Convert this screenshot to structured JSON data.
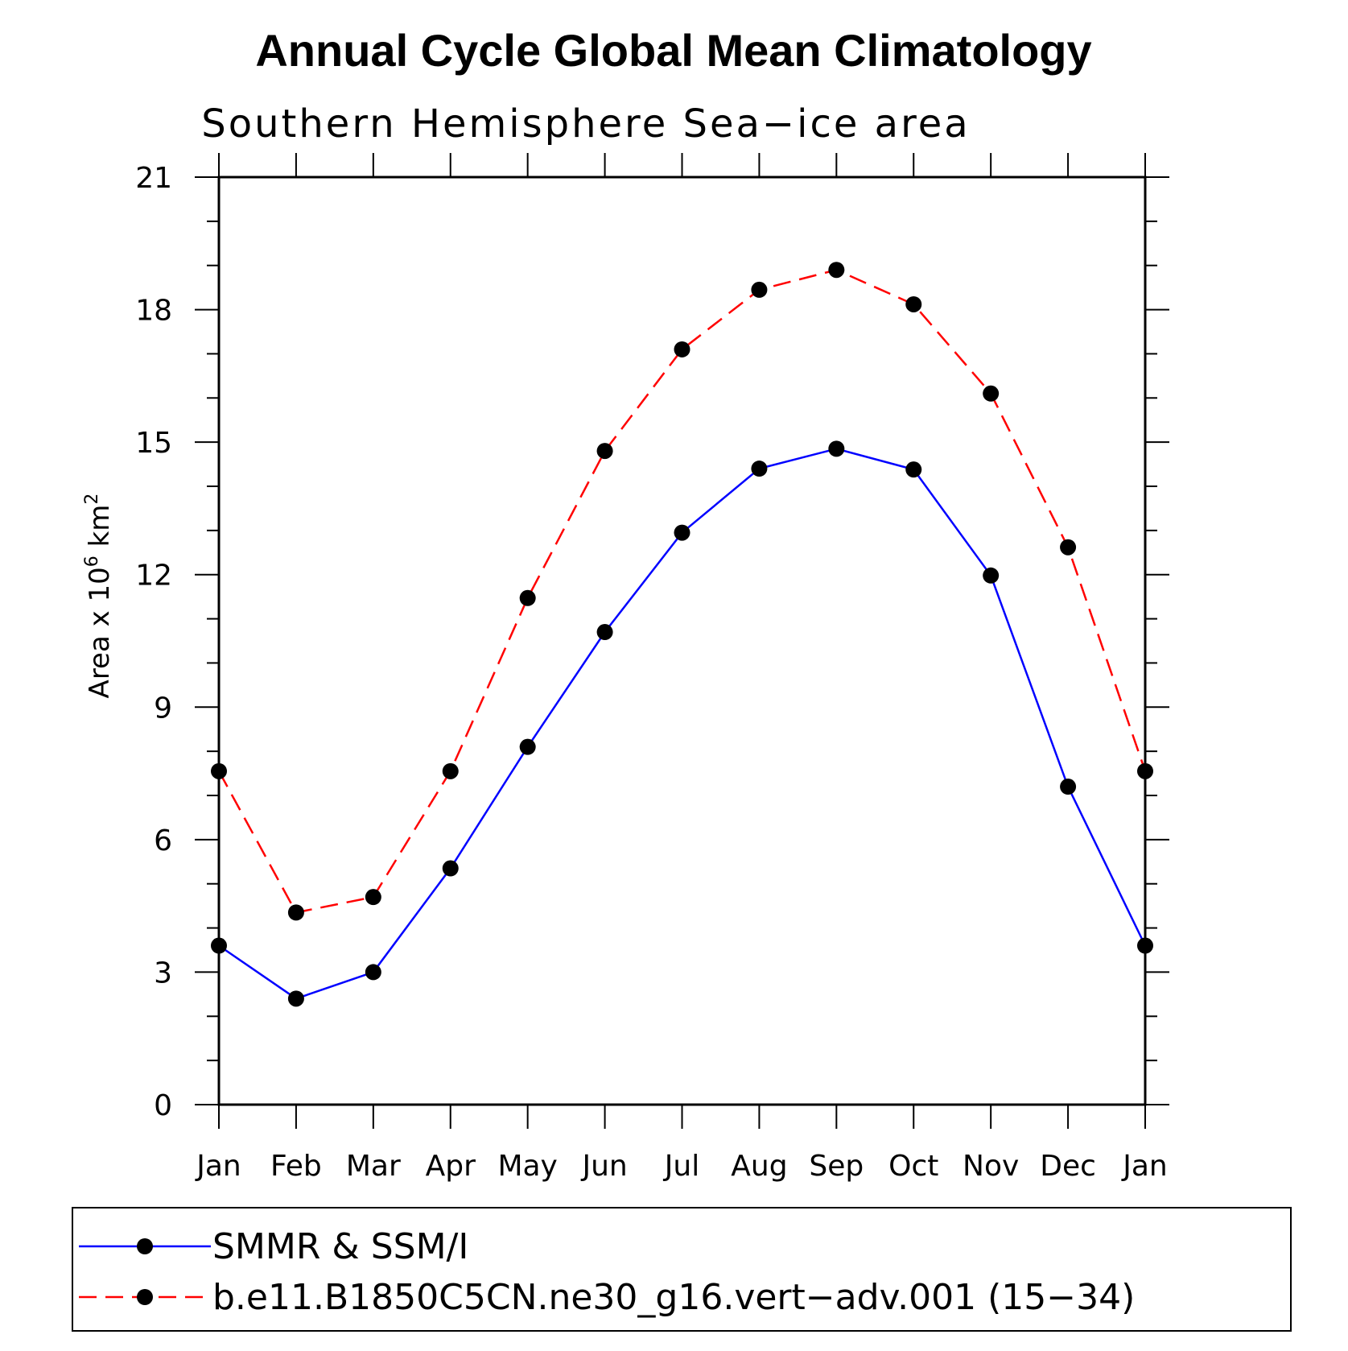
{
  "chart_data": {
    "type": "line",
    "title": "Annual Cycle Global Mean Climatology",
    "subtitle": "Southern Hemisphere Sea−ice area",
    "ylabel": {
      "main": "Area x 10",
      "exponent": "6",
      "unit": " km",
      "unit_exponent": "2"
    },
    "categories": [
      "Jan",
      "Feb",
      "Mar",
      "Apr",
      "May",
      "Jun",
      "Jul",
      "Aug",
      "Sep",
      "Oct",
      "Nov",
      "Dec",
      "Jan"
    ],
    "ylim": [
      0,
      21
    ],
    "yticks": [
      0,
      3,
      6,
      9,
      12,
      15,
      18,
      21
    ],
    "series": [
      {
        "name": "SMMR & SSM/I",
        "color": "#0000ff",
        "style": "solid",
        "marker": "filled-circle",
        "values": [
          3.6,
          2.4,
          3.0,
          5.35,
          8.1,
          10.7,
          12.95,
          14.4,
          14.85,
          14.38,
          11.98,
          7.2,
          3.6
        ]
      },
      {
        "name": "b.e11.B1850C5CN.ne30_g16.vert−adv.001 (15−34)",
        "color": "#ff0000",
        "style": "dashed",
        "marker": "filled-circle",
        "values": [
          7.55,
          4.35,
          4.7,
          7.55,
          11.47,
          14.8,
          17.1,
          18.45,
          18.9,
          18.12,
          16.1,
          12.62,
          7.55
        ]
      }
    ],
    "grid": false,
    "legend_position": "bottom"
  }
}
